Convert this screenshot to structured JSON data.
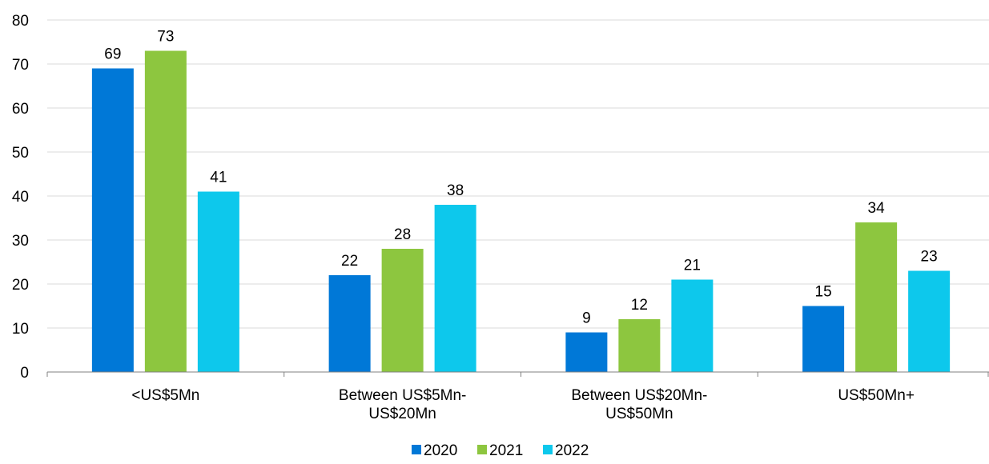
{
  "chart_data": {
    "type": "bar",
    "title": "",
    "xlabel": "",
    "ylabel": "",
    "categories": [
      [
        "<US$5Mn"
      ],
      [
        "Between US$5Mn-",
        "US$20Mn"
      ],
      [
        "Between US$20Mn-",
        "US$50Mn"
      ],
      [
        "US$50Mn+"
      ]
    ],
    "series": [
      {
        "name": "2020",
        "color": "#0078D7",
        "values": [
          69,
          22,
          9,
          15
        ]
      },
      {
        "name": "2021",
        "color": "#8DC63F",
        "values": [
          73,
          28,
          12,
          34
        ]
      },
      {
        "name": "2022",
        "color": "#0DC8EC",
        "values": [
          41,
          38,
          21,
          23
        ]
      }
    ],
    "ylim": [
      0,
      80
    ],
    "yticks": [
      0,
      10,
      20,
      30,
      40,
      50,
      60,
      70,
      80
    ],
    "grid": true,
    "legend": "bottom-center",
    "data_labels": true
  }
}
